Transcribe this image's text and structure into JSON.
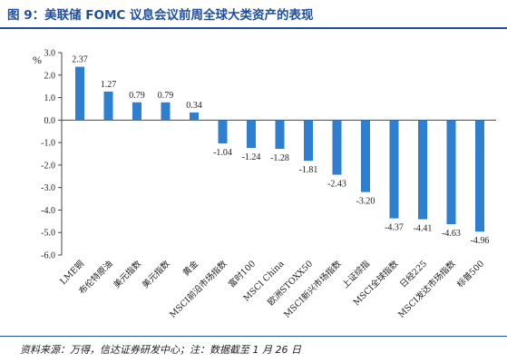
{
  "figure": {
    "title": "图 9：美联储 FOMC 议息会议前周全球大类资产的表现",
    "source_note": "资料来源：万得，信达证券研发中心；注：数据截至 1 月 26 日",
    "accent_color": "#1f4e9d"
  },
  "chart_data": {
    "type": "bar",
    "unit_label": "%",
    "categories": [
      "LME铜",
      "布伦特原油",
      "美元指数",
      "美元指数",
      "黄金",
      "MSCI前沿市场指数",
      "富时100",
      "MSCI China",
      "欧洲STOXX50",
      "MSCI新兴市场指数",
      "上证综指",
      "MSCI全球指数",
      "日经225",
      "MSCI发达市场指数",
      "标普500"
    ],
    "values": [
      2.37,
      1.27,
      0.79,
      0.79,
      0.34,
      -1.04,
      -1.24,
      -1.28,
      -1.81,
      -2.43,
      -3.2,
      -4.37,
      -4.41,
      -4.63,
      -4.96
    ],
    "value_labels": [
      "2.37",
      "1.27",
      "0.79",
      "0.79",
      "0.34",
      "-1.04",
      "-1.24",
      "-1.28",
      "-1.81",
      "-2.43",
      "-3.20",
      "-4.37",
      "-4.41",
      "-4.63",
      "-4.96"
    ],
    "ylim": [
      -6.0,
      3.0
    ],
    "yticks": [
      3.0,
      2.0,
      1.0,
      0.0,
      -1.0,
      -2.0,
      -3.0,
      -4.0,
      -5.0,
      -6.0
    ],
    "ytick_labels": [
      "3.0",
      "2.0",
      "1.0",
      "0.0",
      "-1.0",
      "-2.0",
      "-3.0",
      "-4.0",
      "-5.0",
      "-6.0"
    ],
    "bar_color": "#2e7fcf",
    "grid": false,
    "legend": "none"
  }
}
